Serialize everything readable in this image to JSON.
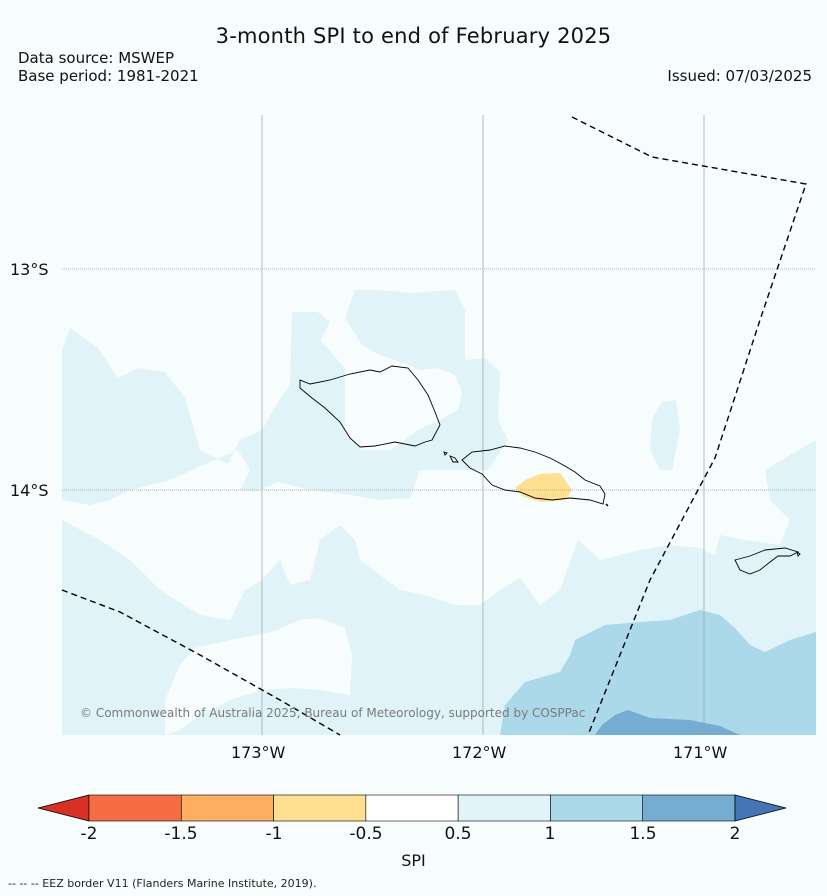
{
  "header": {
    "title": "3-month SPI to end of February 2025",
    "data_source": "Data source: MSWEP",
    "base_period": "Base period: 1981-2021",
    "issued": "Issued: 07/03/2025"
  },
  "map": {
    "lat_labels": [
      "13°S",
      "14°S"
    ],
    "lon_labels": [
      "173°W",
      "172°W",
      "171°W"
    ],
    "credit": "© Commonwealth of Australia 2025, Bureau of Meteorology, supported by COSPPac",
    "colors": {
      "background": "#f7fdfd",
      "light_blue": "#e0f3f8",
      "mid_blue": "#abd9e9",
      "blue": "#74add1",
      "pale_yellow": "#fee090",
      "coast": "#000000"
    }
  },
  "colorbar": {
    "label": "SPI",
    "ticks": [
      "-2",
      "-1.5",
      "-1",
      "-0.5",
      "0.5",
      "1",
      "1.5",
      "2"
    ],
    "bins": [
      {
        "from": -2,
        "to": -1.5,
        "color": "#f46d43"
      },
      {
        "from": -1.5,
        "to": -1,
        "color": "#fdae61"
      },
      {
        "from": -1,
        "to": -0.5,
        "color": "#fee090"
      },
      {
        "from": -0.5,
        "to": 0.5,
        "color": "#ffffff"
      },
      {
        "from": 0.5,
        "to": 1,
        "color": "#e0f3f8"
      },
      {
        "from": 1,
        "to": 1.5,
        "color": "#abd9e9"
      },
      {
        "from": 1.5,
        "to": 2,
        "color": "#74add1"
      }
    ],
    "under_color": "#d73027",
    "over_color": "#4575b4"
  },
  "footnote": "--  --  -- EEZ border V11 (Flanders Marine Institute, 2019)."
}
